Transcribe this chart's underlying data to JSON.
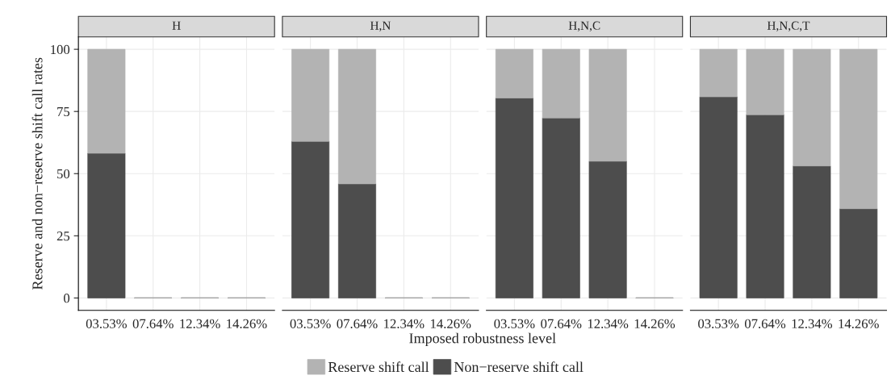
{
  "chart_data": [
    {
      "type": "bar",
      "title": "H",
      "ylabel": "Reserve and non−reserve shift call rates",
      "categories": [
        "03.53%",
        "07.64%",
        "12.34%",
        "14.26%"
      ],
      "stacked": true,
      "ylim": [
        -5,
        105
      ],
      "yticks": [
        0,
        25,
        50,
        75,
        100
      ],
      "grid": true,
      "legend": "bottom",
      "series": [
        {
          "name": "Non−reserve shift call",
          "color": "#4d4d4d",
          "values": [
            58.2,
            0,
            0,
            0
          ]
        },
        {
          "name": "Reserve shift call",
          "color": "#b3b3b3",
          "values": [
            41.8,
            0,
            0,
            0
          ]
        }
      ]
    },
    {
      "type": "bar",
      "title": "H,N",
      "xlabel": "Imposed robustness level",
      "categories": [
        "03.53%",
        "07.64%",
        "12.34%",
        "14.26%"
      ],
      "stacked": true,
      "ylim": [
        -5,
        105
      ],
      "yticks": [
        0,
        25,
        50,
        75,
        100
      ],
      "grid": true,
      "tick_labels": "x",
      "series": [
        {
          "color": "#4d4d4d",
          "values": [
            63.0,
            45.9,
            0,
            0
          ]
        },
        {
          "color": "#b3b3b3",
          "values": [
            37.0,
            54.1,
            0,
            0
          ]
        }
      ]
    },
    {
      "type": "bar",
      "title": "H,N,C",
      "categories": [
        "03.53%",
        "07.64%",
        "12.34%",
        "14.26%"
      ],
      "stacked": true,
      "ylim": [
        -5,
        105
      ],
      "yticks": [
        0,
        25,
        50,
        75,
        100
      ],
      "grid": true,
      "tick_labels": "x",
      "series": [
        {
          "color": "#4d4d4d",
          "values": [
            80.4,
            72.4,
            55.0,
            0
          ]
        },
        {
          "color": "#b3b3b3",
          "values": [
            19.6,
            27.6,
            45.0,
            0
          ]
        }
      ]
    },
    {
      "type": "bar",
      "title": "H,N,C,T",
      "categories": [
        "03.53%",
        "07.64%",
        "12.34%",
        "14.26%"
      ],
      "stacked": true,
      "ylim": [
        -5,
        105
      ],
      "yticks": [
        0,
        25,
        50,
        75,
        100
      ],
      "grid": true,
      "tick_labels": "x",
      "series": [
        {
          "color": "#4d4d4d",
          "values": [
            80.9,
            73.7,
            53.1,
            35.9
          ]
        },
        {
          "color": "#b3b3b3",
          "values": [
            19.1,
            26.3,
            46.9,
            64.1
          ]
        }
      ]
    }
  ]
}
